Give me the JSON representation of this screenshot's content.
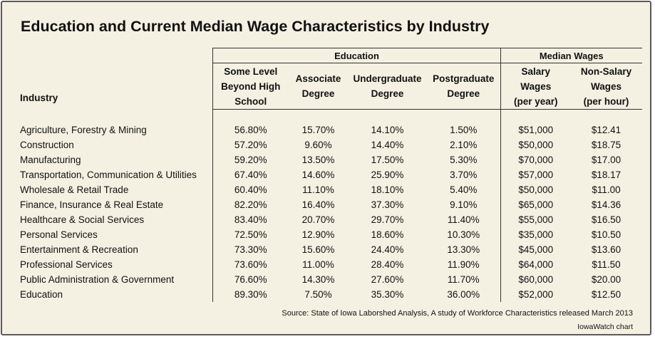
{
  "title": "Education and Current Median Wage Characteristics by Industry",
  "groups": {
    "education": "Education",
    "wages": "Median Wages"
  },
  "headers": {
    "industry": "Industry",
    "some_level": [
      "Some Level",
      "Beyond High",
      "School"
    ],
    "associate": [
      "Associate",
      "Degree"
    ],
    "undergraduate": [
      "Undergraduate",
      "Degree"
    ],
    "postgraduate": [
      "Postgraduate",
      "Degree"
    ],
    "salary": [
      "Salary",
      "Wages",
      "(per year)"
    ],
    "nonsalary": [
      "Non-Salary",
      "Wages",
      "(per hour)"
    ]
  },
  "rows": [
    {
      "industry": "Agriculture, Forestry & Mining",
      "some_level": "56.80%",
      "associate": "15.70%",
      "undergraduate": "14.10%",
      "postgraduate": "1.50%",
      "salary": "$51,000",
      "nonsalary": "$12.41"
    },
    {
      "industry": "Construction",
      "some_level": "57.20%",
      "associate": "9.60%",
      "undergraduate": "14.40%",
      "postgraduate": "2.10%",
      "salary": "$50,000",
      "nonsalary": "$18.75"
    },
    {
      "industry": "Manufacturing",
      "some_level": "59.20%",
      "associate": "13.50%",
      "undergraduate": "17.50%",
      "postgraduate": "5.30%",
      "salary": "$70,000",
      "nonsalary": "$17.00"
    },
    {
      "industry": "Transportation, Communication & Utilities",
      "some_level": "67.40%",
      "associate": "14.60%",
      "undergraduate": "25.90%",
      "postgraduate": "3.70%",
      "salary": "$57,000",
      "nonsalary": "$18.17"
    },
    {
      "industry": "Wholesale & Retail Trade",
      "some_level": "60.40%",
      "associate": "11.10%",
      "undergraduate": "18.10%",
      "postgraduate": "5.40%",
      "salary": "$50,000",
      "nonsalary": "$11.00"
    },
    {
      "industry": "Finance, Insurance & Real Estate",
      "some_level": "82.20%",
      "associate": "16.40%",
      "undergraduate": "37.30%",
      "postgraduate": "9.10%",
      "salary": "$65,000",
      "nonsalary": "$14.36"
    },
    {
      "industry": "Healthcare & Social Services",
      "some_level": "83.40%",
      "associate": "20.70%",
      "undergraduate": "29.70%",
      "postgraduate": "11.40%",
      "salary": "$55,000",
      "nonsalary": "$16.50"
    },
    {
      "industry": "Personal Services",
      "some_level": "72.50%",
      "associate": "12.90%",
      "undergraduate": "18.60%",
      "postgraduate": "10.30%",
      "salary": "$35,000",
      "nonsalary": "$10.50"
    },
    {
      "industry": "Entertainment & Recreation",
      "some_level": "73.30%",
      "associate": "15.60%",
      "undergraduate": "24.40%",
      "postgraduate": "13.30%",
      "salary": "$45,000",
      "nonsalary": "$13.60"
    },
    {
      "industry": "Professional Services",
      "some_level": "73.60%",
      "associate": "11.00%",
      "undergraduate": "28.40%",
      "postgraduate": "11.90%",
      "salary": "$64,000",
      "nonsalary": "$11.50"
    },
    {
      "industry": "Public Administration & Government",
      "some_level": "76.60%",
      "associate": "14.30%",
      "undergraduate": "27.60%",
      "postgraduate": "11.70%",
      "salary": "$60,000",
      "nonsalary": "$20.00"
    },
    {
      "industry": "Education",
      "some_level": "89.30%",
      "associate": "7.50%",
      "undergraduate": "35.30%",
      "postgraduate": "36.00%",
      "salary": "$52,000",
      "nonsalary": "$12.50"
    }
  ],
  "source": "Source: State of Iowa Laborshed Analysis, A study of Workforce Characteristics released March 2013",
  "credit": "IowaWatch chart",
  "colors": {
    "background": "#f4f1e2",
    "border": "#5a5a5a",
    "text": "#111111"
  }
}
